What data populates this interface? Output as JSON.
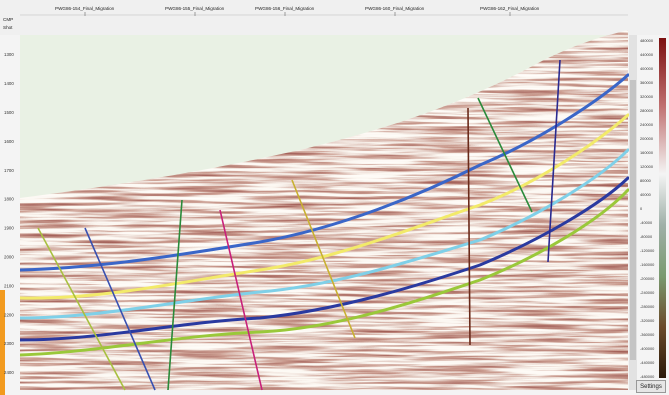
{
  "header": {
    "line_names": [
      "PWG86-154_Final_Migration",
      "PWG86-155_Final_Migration",
      "PWG86-156_Final_Migration",
      "PWG86-160_Final_Migration",
      "PWG86-162_Final_Migration"
    ],
    "cmp_label": "CMP",
    "shot_label": "Shot"
  },
  "time_axis": {
    "labels": [
      "1300",
      "1400",
      "1500",
      "1600",
      "1700",
      "1800",
      "1900",
      "2000",
      "2100",
      "2200",
      "2300",
      "2400"
    ]
  },
  "color_scale": {
    "labels": [
      "480000",
      "440000",
      "400000",
      "360000",
      "320000",
      "280000",
      "240000",
      "200000",
      "160000",
      "120000",
      "80000",
      "40000",
      "0",
      "-40000",
      "-80000",
      "-120000",
      "-160000",
      "-200000",
      "-240000",
      "-280000",
      "-320000",
      "-360000",
      "-400000",
      "-440000",
      "-480000"
    ]
  },
  "settings_button": "Settings"
}
